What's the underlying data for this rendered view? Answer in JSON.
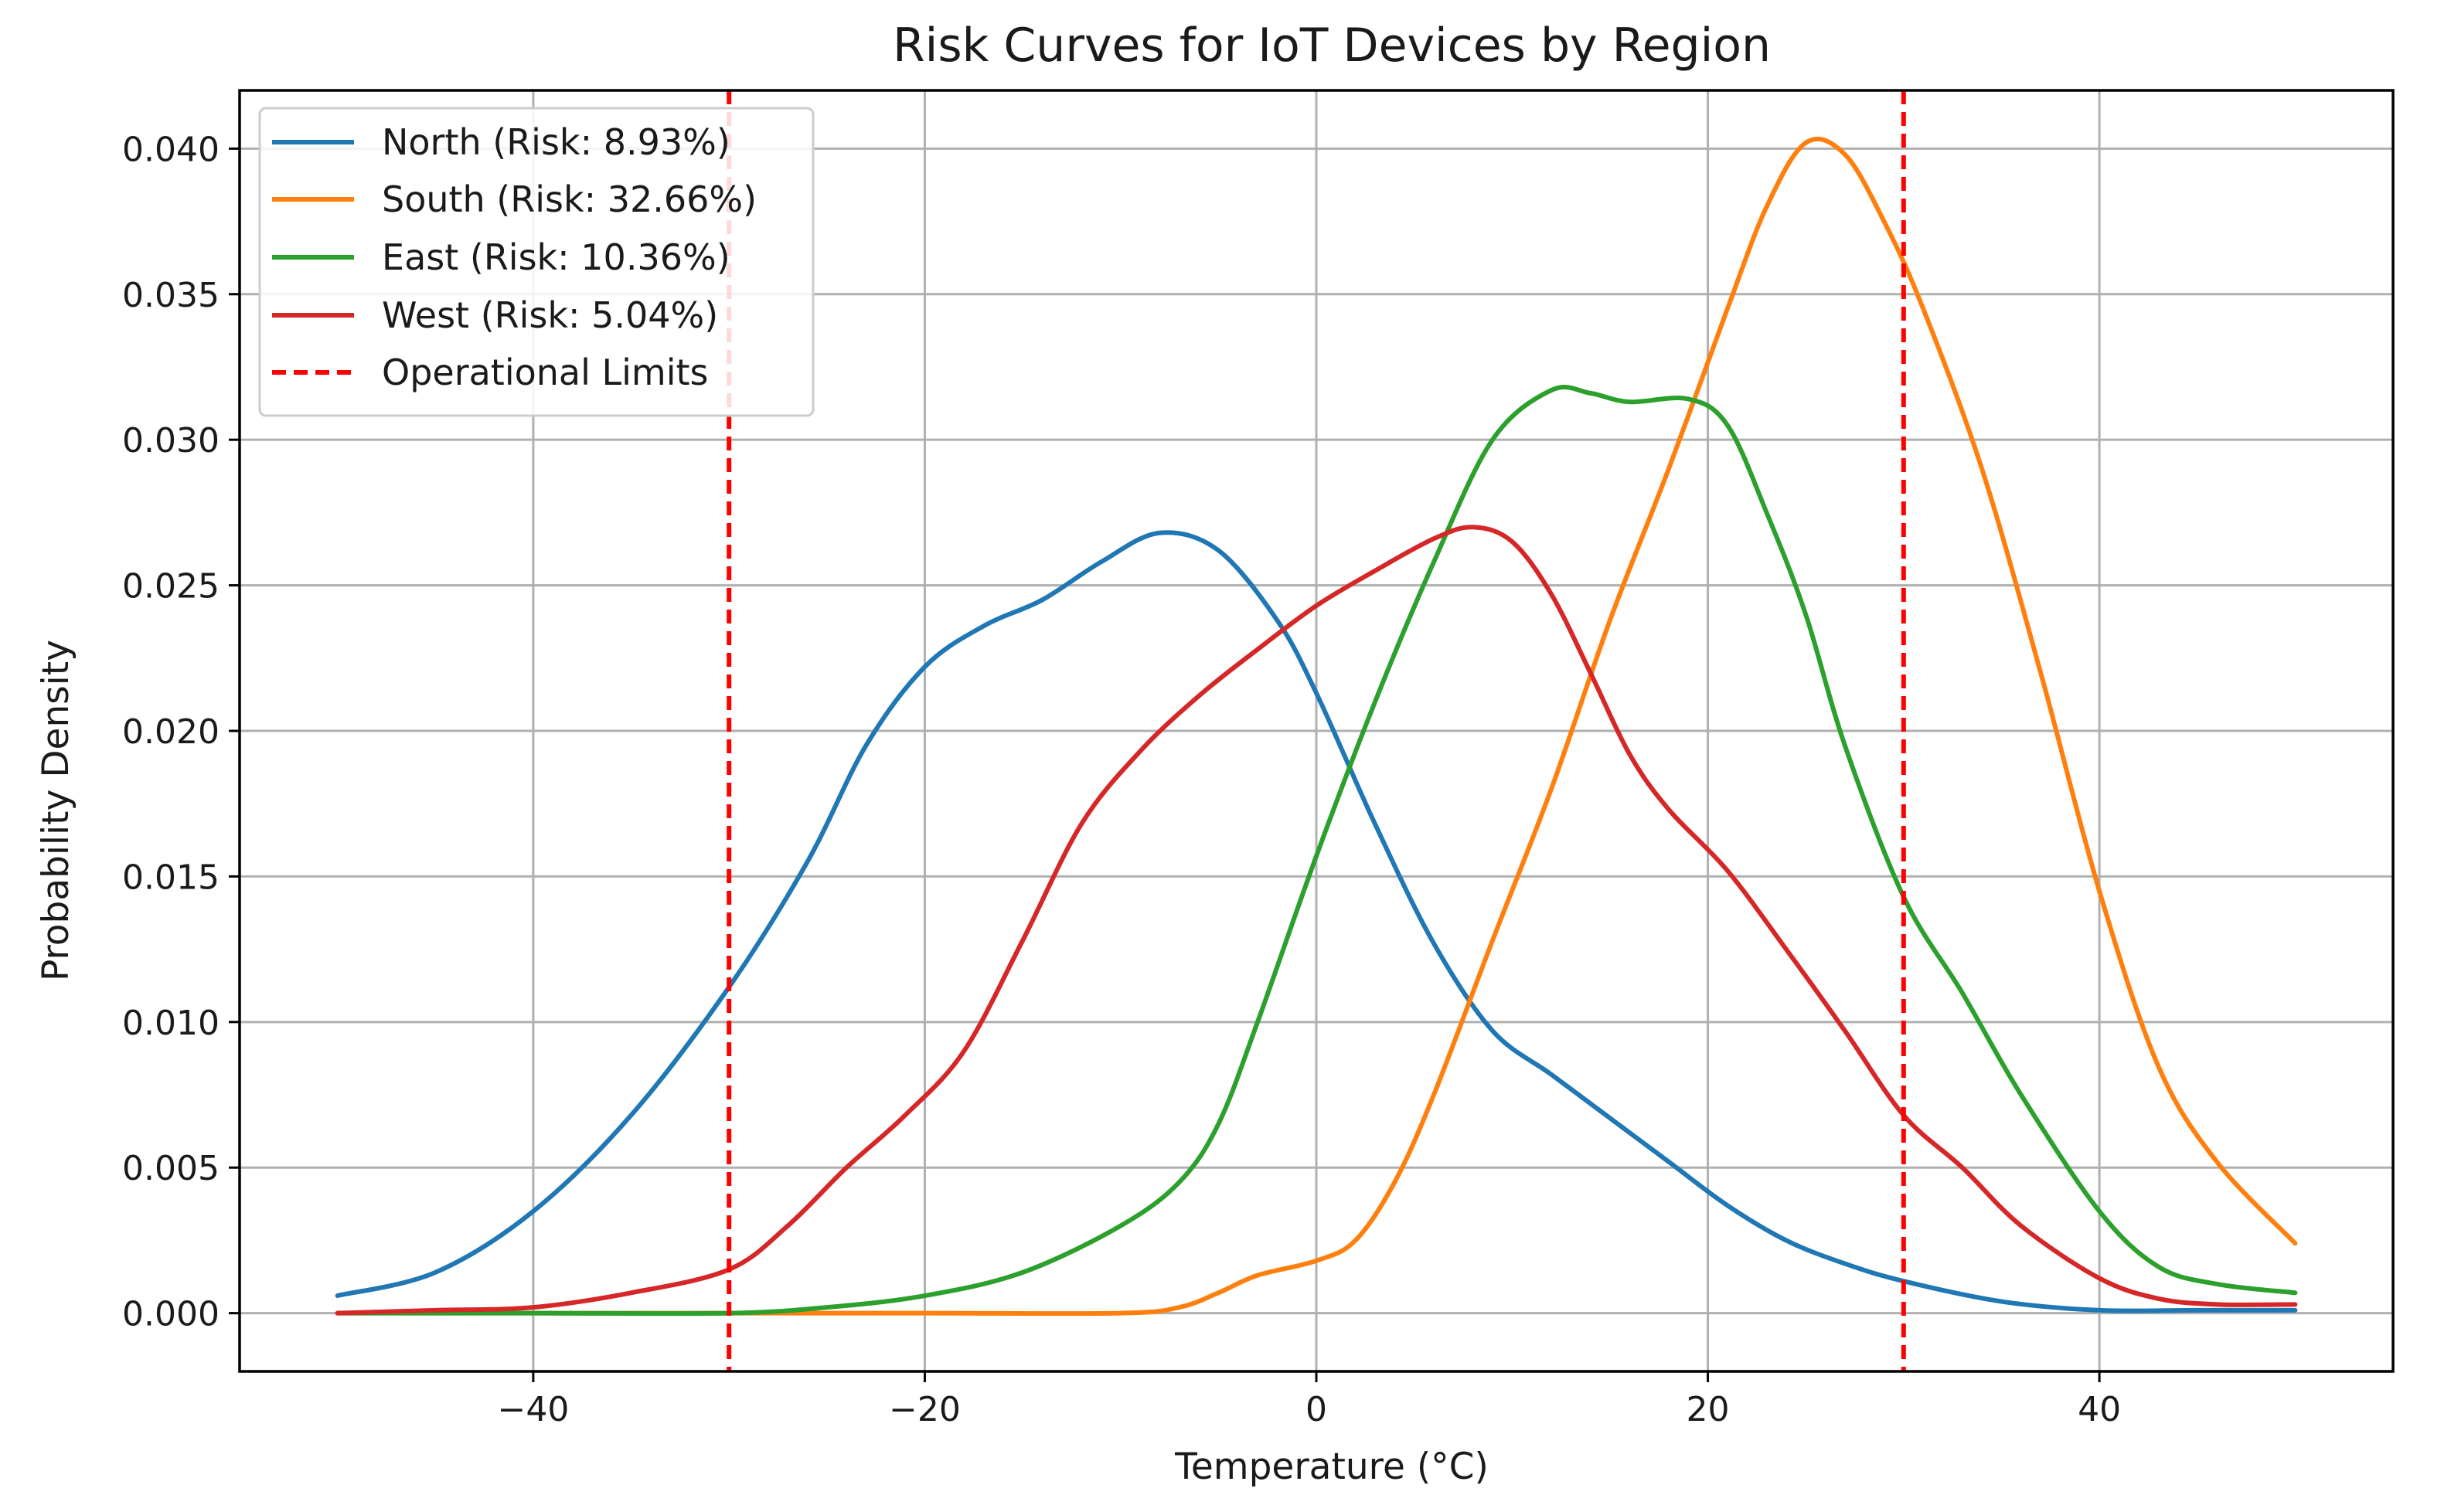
{
  "chart_data": {
    "type": "line",
    "title": "Risk Curves for IoT Devices by Region",
    "xlabel": "Temperature (°C)",
    "ylabel": "Probability Density",
    "xlim": [
      -55,
      55
    ],
    "ylim": [
      -0.002,
      0.042
    ],
    "grid": true,
    "legend_position": "top-left",
    "x_ticks": [
      -40,
      -20,
      0,
      20,
      40
    ],
    "x_tick_labels": [
      "−40",
      "−20",
      "0",
      "20",
      "40"
    ],
    "y_ticks": [
      0.0,
      0.005,
      0.01,
      0.015,
      0.02,
      0.025,
      0.03,
      0.035,
      0.04
    ],
    "y_tick_labels": [
      "0.000",
      "0.005",
      "0.010",
      "0.015",
      "0.020",
      "0.025",
      "0.030",
      "0.035",
      "0.040"
    ],
    "series": [
      {
        "name": "North (Risk: 8.93%)",
        "color": "#1f77b4",
        "x": [
          -50,
          -45,
          -40,
          -35,
          -30,
          -26,
          -23,
          -20,
          -17,
          -14,
          -11,
          -8,
          -5,
          -2,
          0,
          3,
          6,
          9,
          12,
          15,
          18,
          21,
          24,
          27,
          30,
          35,
          40,
          45,
          50
        ],
        "values": [
          0.0006,
          0.0014,
          0.0035,
          0.0068,
          0.0112,
          0.0155,
          0.0195,
          0.0222,
          0.0236,
          0.0245,
          0.0258,
          0.0268,
          0.0262,
          0.0238,
          0.0213,
          0.0168,
          0.0127,
          0.0097,
          0.0082,
          0.0067,
          0.0052,
          0.0037,
          0.0025,
          0.0017,
          0.0011,
          0.0004,
          0.0001,
          0.0001,
          0.0001
        ]
      },
      {
        "name": "South (Risk: 32.66%)",
        "color": "#ff7f0e",
        "x": [
          -50,
          -40,
          -30,
          -20,
          -10,
          -7,
          -5,
          -3,
          0,
          2,
          4,
          6,
          9,
          12,
          15,
          18,
          21,
          23,
          25,
          27,
          29,
          31,
          34,
          37,
          40,
          43,
          46,
          50
        ],
        "values": [
          0.0,
          0.0,
          0.0,
          0.0,
          0.0,
          0.0002,
          0.0007,
          0.0013,
          0.0018,
          0.0025,
          0.0045,
          0.0075,
          0.0128,
          0.018,
          0.0238,
          0.029,
          0.0345,
          0.038,
          0.0402,
          0.0398,
          0.0375,
          0.0345,
          0.029,
          0.022,
          0.0145,
          0.0085,
          0.0052,
          0.0024
        ]
      },
      {
        "name": "East (Risk: 10.36%)",
        "color": "#2ca02c",
        "x": [
          -50,
          -40,
          -30,
          -25,
          -20,
          -15,
          -10,
          -7,
          -5,
          -3,
          0,
          3,
          6,
          9,
          12,
          14,
          16,
          19,
          21,
          23,
          25,
          27,
          30,
          33,
          36,
          40,
          43,
          46,
          50
        ],
        "values": [
          0.0,
          0.0,
          0.0,
          0.0002,
          0.0006,
          0.0014,
          0.003,
          0.0045,
          0.0065,
          0.01,
          0.0157,
          0.021,
          0.0258,
          0.03,
          0.0317,
          0.0316,
          0.0313,
          0.0314,
          0.0305,
          0.0275,
          0.024,
          0.0195,
          0.0143,
          0.011,
          0.0075,
          0.0035,
          0.0016,
          0.001,
          0.0007
        ]
      },
      {
        "name": "West (Risk: 5.04%)",
        "color": "#d62728",
        "x": [
          -50,
          -45,
          -40,
          -35,
          -30,
          -27,
          -24,
          -21,
          -18,
          -15,
          -12,
          -9,
          -6,
          -3,
          0,
          3,
          6,
          8,
          10,
          12,
          14,
          16,
          18,
          21,
          24,
          27,
          30,
          33,
          36,
          40,
          43,
          46,
          50
        ],
        "values": [
          0.0,
          0.0001,
          0.0002,
          0.0007,
          0.0015,
          0.003,
          0.005,
          0.0068,
          0.009,
          0.0128,
          0.0168,
          0.0193,
          0.0212,
          0.0228,
          0.0243,
          0.0255,
          0.0266,
          0.027,
          0.0265,
          0.0247,
          0.022,
          0.0192,
          0.0173,
          0.0152,
          0.0125,
          0.0097,
          0.0068,
          0.005,
          0.003,
          0.0012,
          0.0005,
          0.0003,
          0.0003
        ]
      }
    ],
    "reference_lines": {
      "name": "Operational Limits",
      "color": "#ff0000",
      "style": "dashed",
      "x_values": [
        -30,
        30
      ]
    }
  }
}
